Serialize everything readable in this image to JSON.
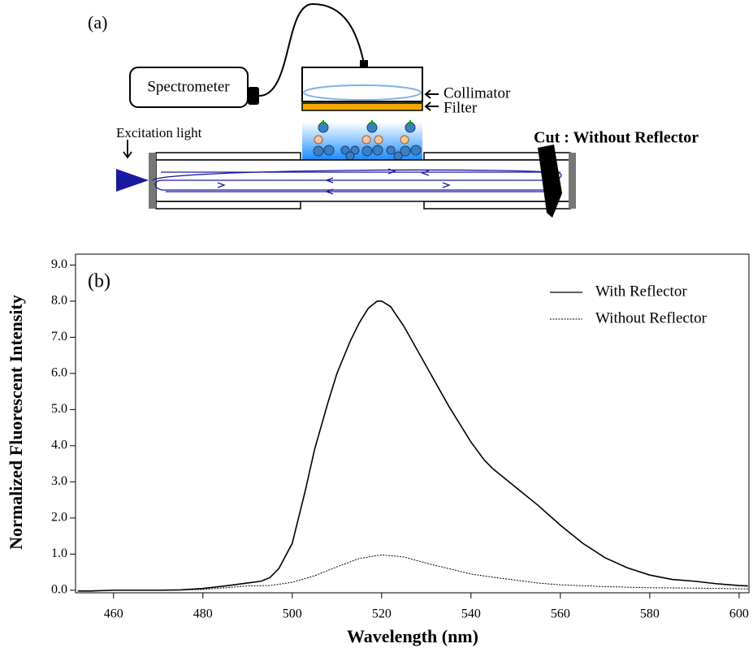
{
  "diagram": {
    "panel_label": "(a)",
    "spectrometer": "Spectrometer",
    "collimator": "Collimator",
    "filter": "Filter",
    "excitation": "Excitation light",
    "cut": "Cut : Without Reflector"
  },
  "chart_data": {
    "type": "line",
    "panel_label": "(b)",
    "x_label": "Wavelength (nm)",
    "y_label": "Normalized Fluorescent Intensity",
    "xlim": [
      451.5,
      602.2
    ],
    "ylim": [
      -0.07,
      9.3
    ],
    "xticks": [
      460,
      480,
      500,
      520,
      540,
      560,
      580,
      600
    ],
    "yticks": [
      {
        "value": 0,
        "label": "0.0"
      },
      {
        "value": 1,
        "label": "1.0"
      },
      {
        "value": 2,
        "label": "2.0"
      },
      {
        "value": 3,
        "label": "3.0"
      },
      {
        "value": 4,
        "label": "4.0"
      },
      {
        "value": 5,
        "label": "5.0"
      },
      {
        "value": 6,
        "label": "6.0"
      },
      {
        "value": 7,
        "label": "7.0"
      },
      {
        "value": 8,
        "label": "8.0"
      },
      {
        "value": 9,
        "label": "9.0"
      }
    ],
    "legend": "upper right",
    "series": [
      {
        "name": "With Reflector",
        "color": "#000000",
        "style": "solid",
        "x": [
          452,
          455,
          460,
          470,
          475,
          480,
          485,
          490,
          493,
          495,
          497,
          500,
          503,
          505,
          508,
          510,
          513,
          515,
          517,
          519,
          520,
          522,
          525,
          530,
          535,
          540,
          543,
          545,
          550,
          555,
          560,
          565,
          570,
          575,
          580,
          585,
          590,
          595,
          600,
          602
        ],
        "values": [
          -0.02,
          -0.02,
          0.0,
          0.0,
          0.01,
          0.05,
          0.12,
          0.2,
          0.25,
          0.35,
          0.6,
          1.3,
          2.8,
          3.9,
          5.2,
          6.0,
          6.9,
          7.4,
          7.8,
          8.0,
          8.0,
          7.85,
          7.3,
          6.2,
          5.1,
          4.1,
          3.6,
          3.35,
          2.85,
          2.35,
          1.8,
          1.3,
          0.9,
          0.62,
          0.42,
          0.3,
          0.25,
          0.18,
          0.13,
          0.12
        ]
      },
      {
        "name": "Without Reflector",
        "color": "#000000",
        "style": "dotted",
        "x": [
          452,
          460,
          470,
          480,
          485,
          490,
          495,
          500,
          505,
          510,
          515,
          520,
          525,
          530,
          535,
          540,
          545,
          550,
          555,
          560,
          570,
          580,
          590,
          600,
          602
        ],
        "values": [
          -0.02,
          0.0,
          0.0,
          0.02,
          0.07,
          0.12,
          0.13,
          0.22,
          0.4,
          0.65,
          0.88,
          0.98,
          0.92,
          0.75,
          0.6,
          0.45,
          0.36,
          0.28,
          0.2,
          0.15,
          0.1,
          0.07,
          0.06,
          0.04,
          0.04
        ]
      }
    ]
  }
}
